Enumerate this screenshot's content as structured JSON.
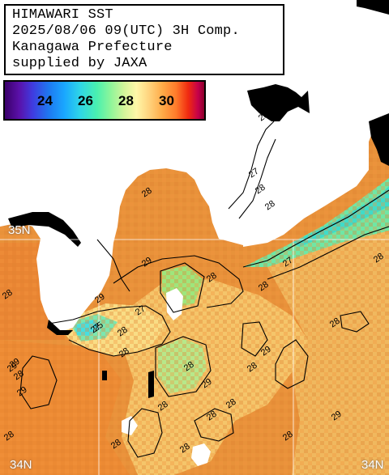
{
  "header": {
    "line1": "HIMAWARI SST",
    "line2": "2025/08/06 09(UTC) 3H Comp.",
    "line3": "Kanagawa Prefecture",
    "line4": "supplied by JAXA"
  },
  "legend": {
    "ticks": [
      "24",
      "26",
      "28",
      "30"
    ],
    "colors": {
      "c22": "#3a006a",
      "c23": "#3f3ce0",
      "c24": "#1aa8ff",
      "c25": "#2fd7e6",
      "c26": "#49f0b0",
      "c27": "#d4f59a",
      "c28": "#ffd580",
      "c29": "#ff9a3a",
      "c30": "#ff7a2a",
      "c31": "#c4004c"
    }
  },
  "map": {
    "lat_labels": {
      "n35_left": "35N",
      "n34_left": "34N",
      "n34_right": "34N"
    },
    "contour_labels": [
      "28",
      "29",
      "28",
      "28",
      "27",
      "28",
      "27",
      "29",
      "28",
      "25",
      "27",
      "28",
      "28",
      "28",
      "27",
      "28",
      "28",
      "28",
      "29",
      "28",
      "28",
      "28",
      "28",
      "28",
      "29",
      "28",
      "28",
      "29",
      "28",
      "29",
      "28",
      "29",
      "29",
      "28"
    ],
    "colors": {
      "land": "#ffffff",
      "missing": "#000000",
      "sea_base": "#e8923a",
      "gridline": "#ffffff"
    }
  }
}
